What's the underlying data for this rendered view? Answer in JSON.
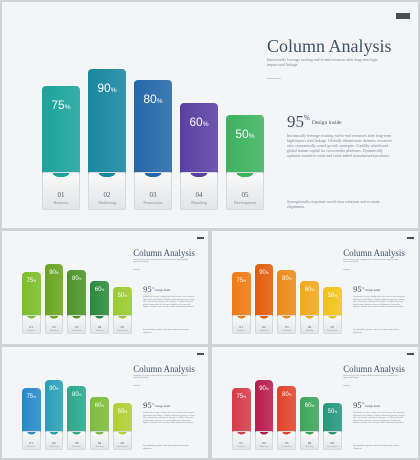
{
  "chart_data": {
    "type": "bar",
    "title": "Column Analysis",
    "categories": [
      "Business",
      "Marketing",
      "Promotions",
      "Branding",
      "Development"
    ],
    "numbers": [
      "01",
      "02",
      "03",
      "04",
      "05"
    ],
    "values": [
      75,
      90,
      80,
      60,
      50
    ],
    "value_labels": [
      "75",
      "90",
      "80",
      "60",
      "50"
    ],
    "value_suffix": "%",
    "ylim": [
      0,
      100
    ],
    "grid": false,
    "legend": "none"
  },
  "slide": {
    "title": "Column Analysis",
    "subtitle": "Interactively leverage existing end-to-end resources after long-term high-impact total linkage.",
    "highlight_value": "95",
    "highlight_suffix": "%",
    "highlight_label": "Design inside",
    "body_text": "Intrinsically leverage existing end-to-end resources after long-term high-impact total linkage. Globally administrate dynamic resources after economically sound growth strategies. Credibly whiteboard global human capital for cross-media platforms. Dynamically optimize transitive value and value-added manufactured products.",
    "footer_text": "Synergistically negotiate world class solutions and accurate alignments."
  },
  "palettes": [
    [
      "#1aa39b",
      "#18879f",
      "#2468a9",
      "#5a40a3",
      "#3db35e"
    ],
    [
      "#7cbd2a",
      "#6aa420",
      "#4e9428",
      "#2a8a3b",
      "#9acb2e"
    ],
    [
      "#f07a12",
      "#e35d0c",
      "#ed8a1a",
      "#f2a91c",
      "#f2c417"
    ],
    [
      "#2789c8",
      "#2a9fb7",
      "#2aa88a",
      "#7dbd3b",
      "#b3cf34"
    ],
    [
      "#d73c4a",
      "#b81c4f",
      "#e1442b",
      "#3da55a",
      "#27977e"
    ]
  ]
}
